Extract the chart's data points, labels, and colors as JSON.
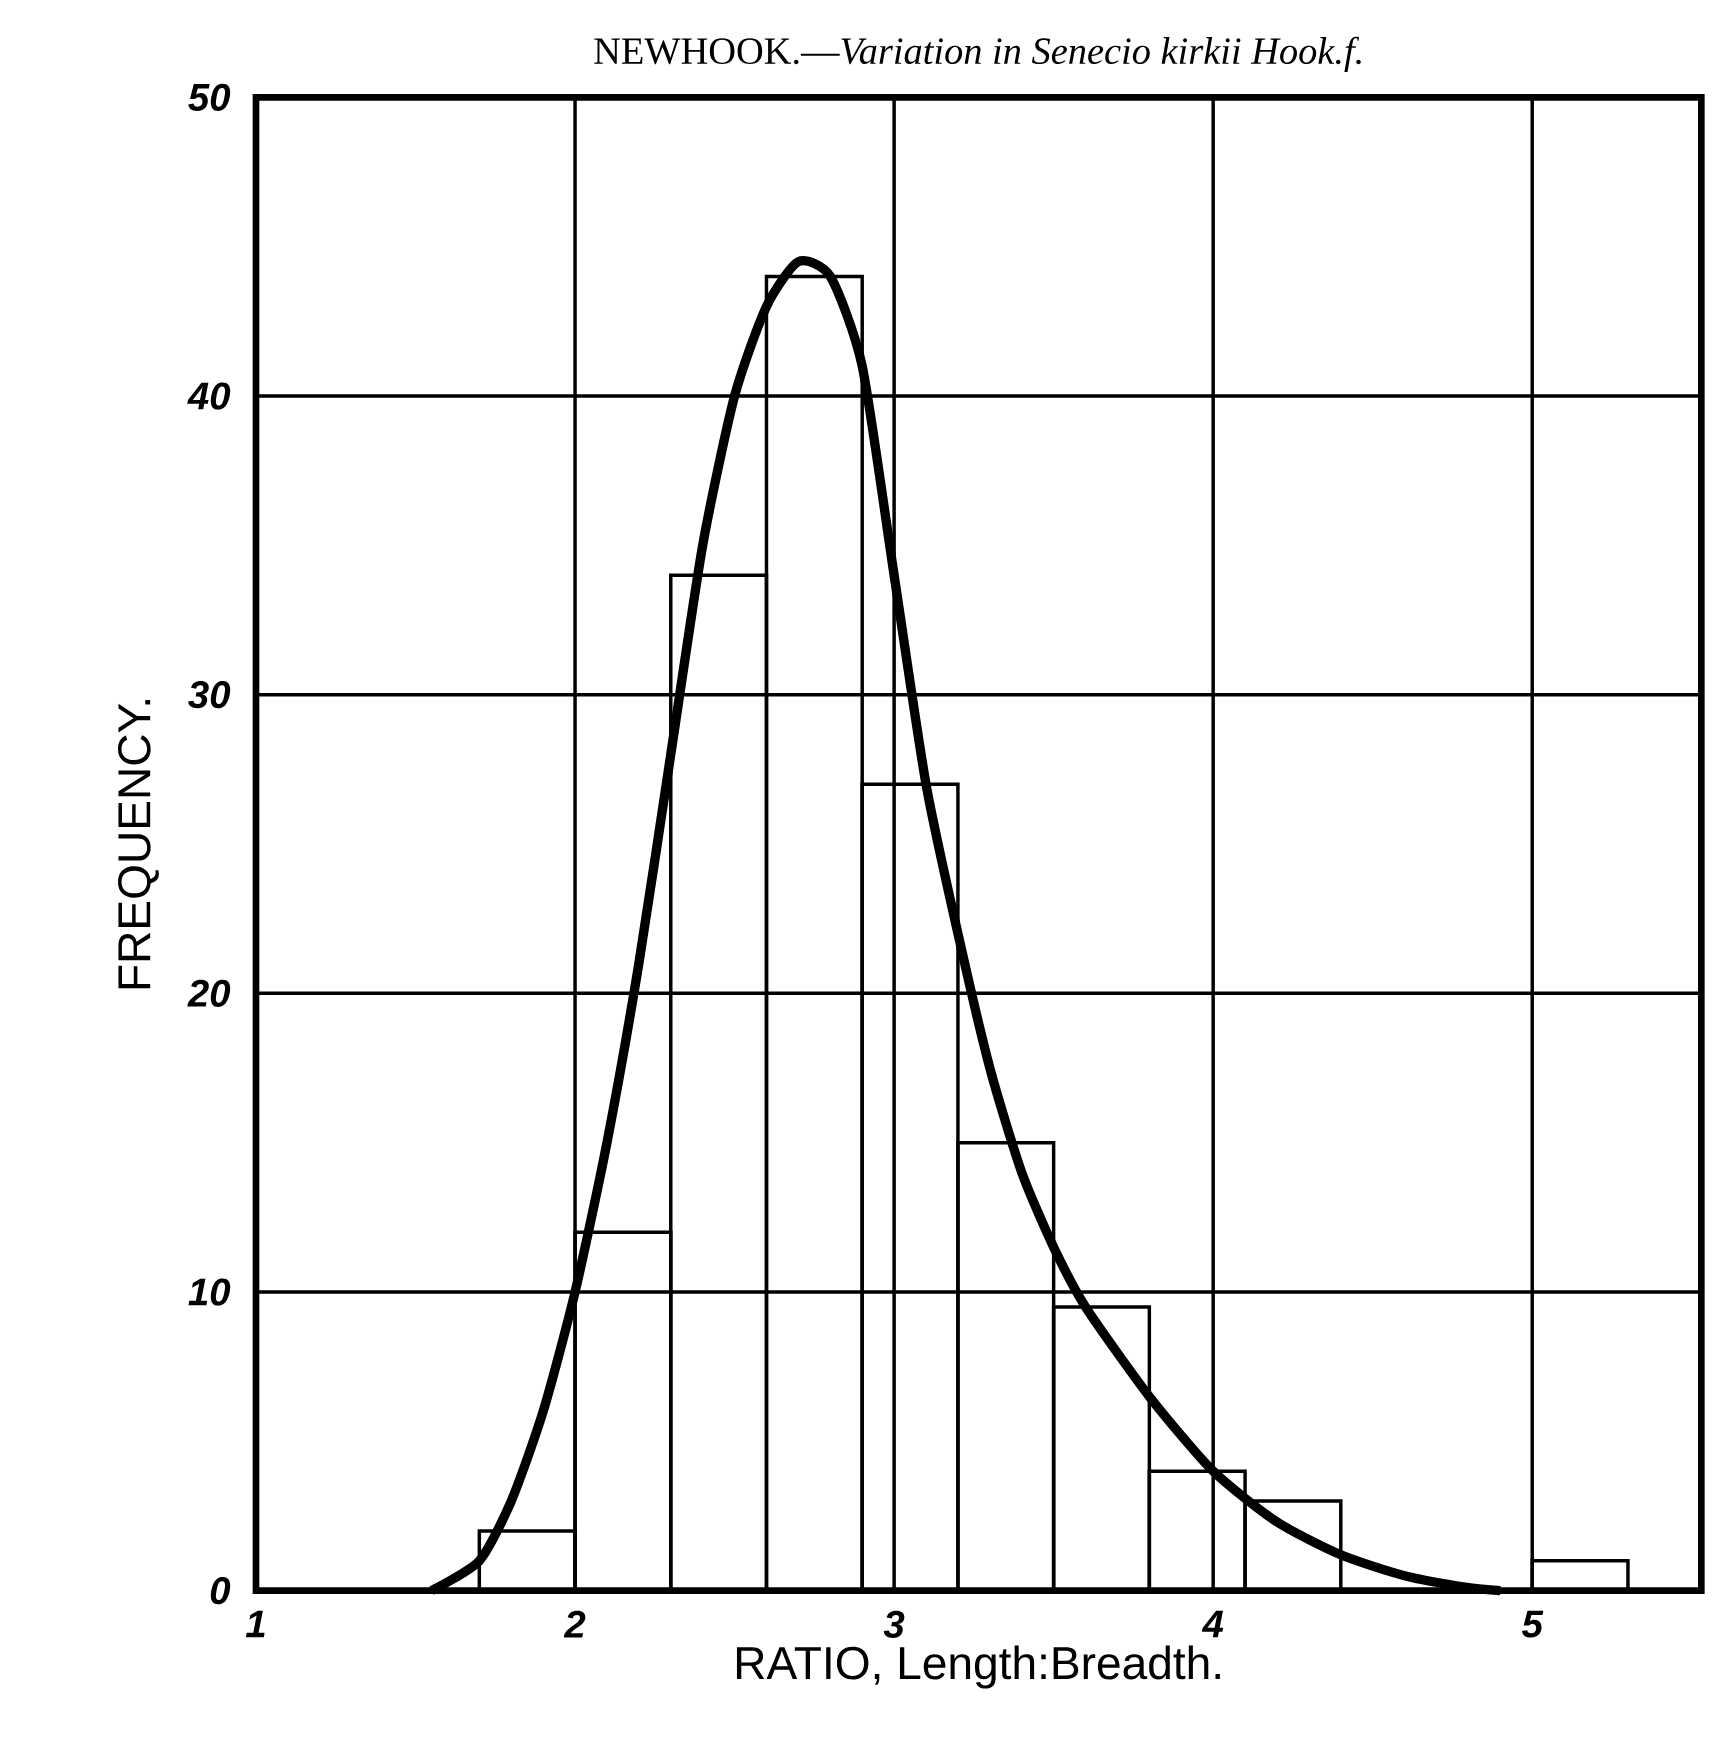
{
  "chart_data": {
    "type": "histogram",
    "title": "NEWHOOK.—*Variation in Senecio kirkii Hook.f.*",
    "xlabel": "RATIO, Length:Breadth.",
    "ylabel": "FREQUENCY.",
    "bins": [
      1.7,
      2.0,
      2.3,
      2.6,
      2.9,
      3.2,
      3.5,
      3.8,
      4.1,
      4.4,
      4.7,
      5.0,
      5.3
    ],
    "values": [
      2,
      12,
      34,
      44,
      27,
      15,
      9.5,
      4,
      3,
      0,
      0,
      1
    ],
    "color": "#000000",
    "series": [
      {
        "type": "line",
        "color": "#000000",
        "x": [
          1.55,
          1.7,
          1.8,
          1.9,
          2.0,
          2.1,
          2.2,
          2.3,
          2.4,
          2.5,
          2.6,
          2.7,
          2.8,
          2.9,
          3.0,
          3.1,
          3.2,
          3.3,
          3.4,
          3.5,
          3.6,
          3.8,
          4.0,
          4.2,
          4.4,
          4.6,
          4.8,
          4.9
        ],
        "values": [
          0,
          1,
          3,
          6,
          10,
          15,
          21,
          28,
          35,
          40,
          43,
          44.5,
          44,
          41,
          34,
          27,
          22,
          17.5,
          14,
          11.5,
          9.5,
          6.5,
          4,
          2.3,
          1.2,
          0.5,
          0.1,
          0
        ]
      }
    ],
    "xlim": [
      1,
      5.53
    ],
    "ylim": [
      0,
      50
    ],
    "xticks": [
      1,
      2,
      3,
      4,
      5
    ],
    "yticks": [
      0,
      10,
      20,
      30,
      40,
      50
    ],
    "grid": true,
    "marker": "none",
    "line_style": "solid"
  }
}
